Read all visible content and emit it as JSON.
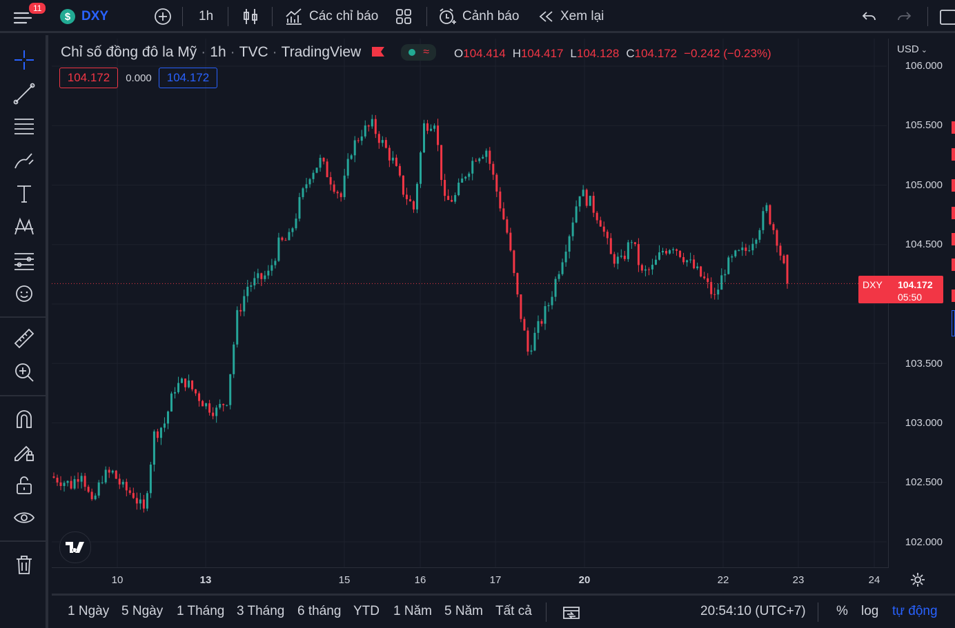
{
  "topbar": {
    "notification_count": "11",
    "symbol": "DXY",
    "interval": "1h",
    "indicators_label": "Các chỉ báo",
    "alert_label": "Cảnh báo",
    "replay_label": "Xem lại"
  },
  "legend": {
    "title": "Chỉ số đồng đô la Mỹ",
    "interval": "1h",
    "exchange": "TVC",
    "source": "TradingView",
    "open_key": "O",
    "open": "104.414",
    "high_key": "H",
    "high": "104.417",
    "low_key": "L",
    "low": "104.128",
    "close_key": "C",
    "close": "104.172",
    "change": "−0.242 (−0.23%)",
    "bid": "104.172",
    "spread": "0.000",
    "ask": "104.172"
  },
  "price_axis": {
    "currency": "USD",
    "ticks": [
      "106.000",
      "105.500",
      "105.000",
      "104.500",
      "103.500",
      "103.000",
      "102.500",
      "102.000"
    ],
    "last_symbol": "DXY",
    "last_price": "104.172",
    "countdown": "05:50"
  },
  "time_axis": {
    "ticks": [
      "10",
      "13",
      "15",
      "16",
      "17",
      "20",
      "22",
      "23",
      "24"
    ]
  },
  "bottombar": {
    "ranges": [
      "1 Ngày",
      "5 Ngày",
      "1 Tháng",
      "3 Tháng",
      "6 tháng",
      "YTD",
      "1 Năm",
      "5 Năm",
      "Tất cả"
    ],
    "clock": "20:54:10 (UTC+7)",
    "percent": "%",
    "log": "log",
    "auto": "tự động"
  },
  "colors": {
    "up": "#26a69a",
    "down": "#f23645",
    "accent": "#2962ff",
    "background": "#131722"
  },
  "chart_data": {
    "type": "candlestick",
    "ylim": [
      101.9,
      106.05
    ],
    "x_ticks": [
      "10",
      "13",
      "15",
      "16",
      "17",
      "20",
      "22",
      "23",
      "24"
    ],
    "close_series": [
      102.55,
      102.52,
      102.48,
      102.6,
      102.3,
      102.55,
      102.58,
      102.45,
      102.4,
      102.25,
      102.9,
      103.0,
      103.3,
      103.35,
      103.25,
      103.15,
      103.1,
      103.2,
      103.9,
      104.15,
      104.2,
      104.25,
      104.5,
      104.55,
      104.85,
      105.1,
      105.2,
      105.05,
      104.9,
      105.3,
      105.45,
      105.5,
      105.35,
      105.2,
      104.95,
      104.8,
      105.5,
      105.55,
      104.85,
      104.9,
      105.1,
      105.25,
      105.3,
      104.95,
      104.6,
      104.05,
      103.6,
      103.8,
      104.0,
      104.3,
      104.6,
      104.95,
      104.85,
      104.7,
      104.4,
      104.35,
      104.55,
      104.25,
      104.3,
      104.45,
      104.5,
      104.4,
      104.3,
      104.2,
      104.05,
      104.3,
      104.4,
      104.45,
      104.6,
      104.8,
      104.55,
      104.172
    ]
  }
}
